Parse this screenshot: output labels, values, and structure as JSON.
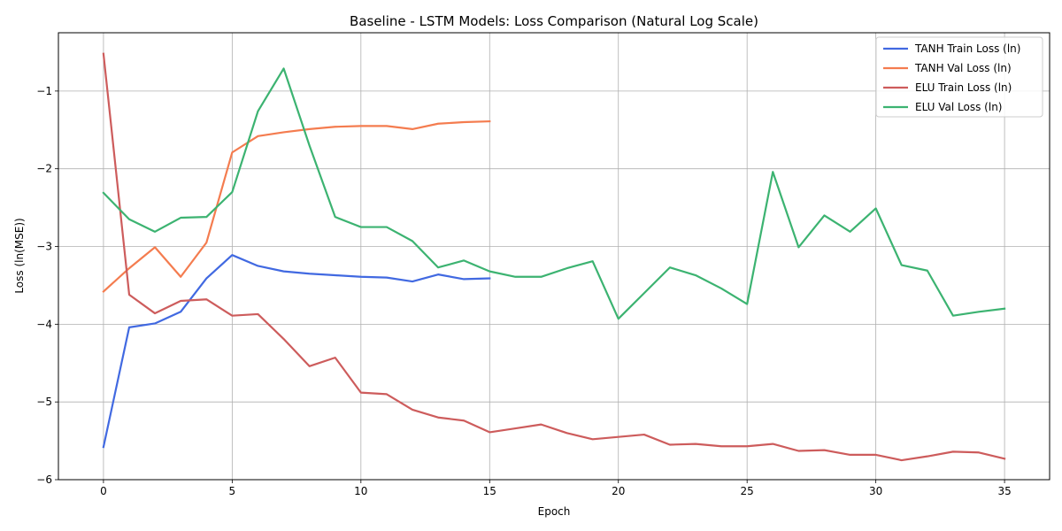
{
  "chart_data": {
    "type": "line",
    "title": "Baseline - LSTM Models: Loss Comparison (Natural Log Scale)",
    "xlabel": "Epoch",
    "ylabel": "Loss (ln(MSE))",
    "xlim": [
      -1.75,
      36.75
    ],
    "ylim": [
      -6.0,
      -0.25
    ],
    "xticks": [
      0,
      5,
      10,
      15,
      20,
      25,
      30,
      35
    ],
    "xtick_labels": [
      "0",
      "5",
      "10",
      "15",
      "20",
      "25",
      "30",
      "35"
    ],
    "yticks": [
      -6,
      -5,
      -4,
      -3,
      -2,
      -1
    ],
    "ytick_labels": [
      "−6",
      "−5",
      "−4",
      "−3",
      "−2",
      "−1"
    ],
    "grid": true,
    "legend_position": "top-right",
    "series": [
      {
        "name": "TANH Train Loss (ln)",
        "color": "#4169e1",
        "x": [
          0,
          1,
          2,
          3,
          4,
          5,
          6,
          7,
          8,
          9,
          10,
          11,
          12,
          13,
          14,
          15
        ],
        "values": [
          -5.58,
          -4.04,
          -3.99,
          -3.84,
          -3.41,
          -3.11,
          -3.25,
          -3.32,
          -3.35,
          -3.37,
          -3.39,
          -3.4,
          -3.45,
          -3.36,
          -3.42,
          -3.41
        ]
      },
      {
        "name": "TANH Val Loss (ln)",
        "color": "#f47c4f",
        "x": [
          0,
          1,
          2,
          3,
          4,
          5,
          6,
          7,
          8,
          9,
          10,
          11,
          12,
          13,
          14,
          15
        ],
        "values": [
          -3.58,
          -3.28,
          -3.01,
          -3.39,
          -2.95,
          -1.79,
          -1.58,
          -1.53,
          -1.49,
          -1.46,
          -1.45,
          -1.45,
          -1.49,
          -1.42,
          -1.4,
          -1.39
        ]
      },
      {
        "name": "ELU Train Loss (ln)",
        "color": "#cd5c5c",
        "x": [
          0,
          1,
          2,
          3,
          4,
          5,
          6,
          7,
          8,
          9,
          10,
          11,
          12,
          13,
          14,
          15,
          16,
          17,
          18,
          19,
          20,
          21,
          22,
          23,
          24,
          25,
          26,
          27,
          28,
          29,
          30,
          31,
          32,
          33,
          34,
          35
        ],
        "values": [
          -0.52,
          -3.62,
          -3.86,
          -3.7,
          -3.68,
          -3.89,
          -3.87,
          -4.19,
          -4.54,
          -4.43,
          -4.88,
          -4.9,
          -5.1,
          -5.2,
          -5.24,
          -5.39,
          -5.34,
          -5.29,
          -5.4,
          -5.48,
          -5.45,
          -5.42,
          -5.55,
          -5.54,
          -5.57,
          -5.57,
          -5.54,
          -5.63,
          -5.62,
          -5.68,
          -5.68,
          -5.75,
          -5.7,
          -5.64,
          -5.65,
          -5.73
        ]
      },
      {
        "name": "ELU Val Loss (ln)",
        "color": "#3cb371",
        "x": [
          0,
          1,
          2,
          3,
          4,
          5,
          6,
          7,
          8,
          9,
          10,
          11,
          12,
          13,
          14,
          15,
          16,
          17,
          18,
          19,
          20,
          21,
          22,
          23,
          24,
          25,
          26,
          27,
          28,
          29,
          30,
          31,
          32,
          33,
          34,
          35
        ],
        "values": [
          -2.31,
          -2.65,
          -2.81,
          -2.63,
          -2.62,
          -2.3,
          -1.26,
          -0.71,
          -1.7,
          -2.62,
          -2.75,
          -2.75,
          -2.93,
          -3.27,
          -3.18,
          -3.32,
          -3.39,
          -3.39,
          -3.28,
          -3.19,
          -3.93,
          -3.6,
          -3.27,
          -3.37,
          -3.54,
          -3.74,
          -2.04,
          -3.01,
          -2.6,
          -2.81,
          -2.51,
          -3.24,
          -3.31,
          -3.89,
          -3.84,
          -3.8
        ]
      }
    ]
  }
}
